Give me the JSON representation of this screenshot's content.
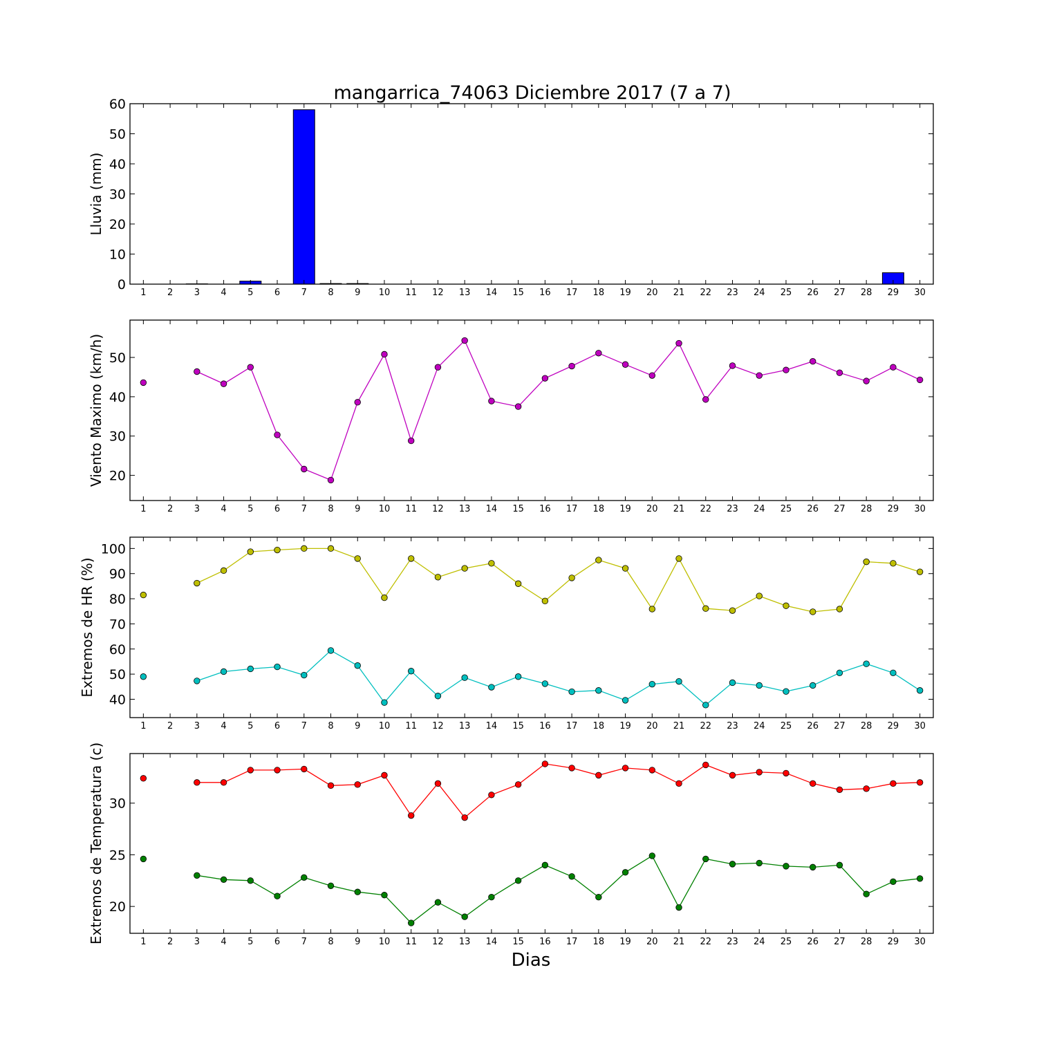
{
  "figure": {
    "title": "mangarrica_74063 Diciembre 2017  (7 a 7)",
    "xlabel": "Dias"
  },
  "chart_data": [
    {
      "type": "bar",
      "ylabel": "Lluvia (mm)",
      "ylim": [
        0,
        60
      ],
      "yticks": [
        0,
        10,
        20,
        30,
        40,
        50,
        60
      ],
      "x": [
        1,
        2,
        3,
        4,
        5,
        6,
        7,
        8,
        9,
        10,
        11,
        12,
        13,
        14,
        15,
        16,
        17,
        18,
        19,
        20,
        21,
        22,
        23,
        24,
        25,
        26,
        27,
        28,
        29,
        30
      ],
      "xlim": [
        0.5,
        30.5
      ],
      "series": [
        {
          "color": "#0000ff",
          "values": [
            0,
            0,
            0.1,
            0,
            1.0,
            0,
            58.0,
            0.2,
            0.2,
            0,
            0,
            0,
            0,
            0,
            0,
            0,
            0,
            0,
            0,
            0,
            0,
            0,
            0,
            0,
            0,
            0,
            0,
            0,
            3.8,
            0
          ]
        }
      ],
      "grid": false
    },
    {
      "type": "line",
      "ylabel": "Viento Maximo (km/h)",
      "ylim": [
        13.6,
        59.5
      ],
      "yticks": [
        20,
        30,
        40,
        50
      ],
      "x": [
        1,
        2,
        3,
        4,
        5,
        6,
        7,
        8,
        9,
        10,
        11,
        12,
        13,
        14,
        15,
        16,
        17,
        18,
        19,
        20,
        21,
        22,
        23,
        24,
        25,
        26,
        27,
        28,
        29,
        30
      ],
      "xlim": [
        0.5,
        30.5
      ],
      "series": [
        {
          "color": "#bf00bf",
          "values": [
            43.6,
            null,
            46.4,
            43.3,
            47.5,
            30.3,
            21.6,
            18.8,
            38.6,
            50.8,
            28.8,
            47.5,
            54.3,
            38.9,
            37.5,
            44.7,
            47.8,
            51.1,
            48.2,
            45.4,
            53.6,
            39.3,
            47.9,
            45.4,
            46.8,
            49.0,
            46.1,
            44.0,
            47.5,
            44.3
          ]
        }
      ],
      "grid": false
    },
    {
      "type": "line",
      "ylabel": "Extremos de HR (%)",
      "ylim": [
        32.7,
        104.5
      ],
      "yticks": [
        40,
        50,
        60,
        70,
        80,
        90,
        100
      ],
      "x": [
        1,
        2,
        3,
        4,
        5,
        6,
        7,
        8,
        9,
        10,
        11,
        12,
        13,
        14,
        15,
        16,
        17,
        18,
        19,
        20,
        21,
        22,
        23,
        24,
        25,
        26,
        27,
        28,
        29,
        30
      ],
      "xlim": [
        0.5,
        30.5
      ],
      "series": [
        {
          "color": "#bfbf00",
          "values": [
            81.5,
            null,
            86.2,
            91.2,
            98.7,
            99.4,
            100,
            100,
            96.0,
            80.4,
            96.0,
            88.6,
            92.1,
            94.1,
            86.0,
            79.1,
            88.3,
            95.4,
            92.1,
            75.9,
            96.0,
            76.1,
            75.3,
            81.1,
            77.2,
            74.8,
            75.9,
            94.7,
            94.1,
            90.7
          ]
        },
        {
          "color": "#00bfbf",
          "values": [
            49.0,
            null,
            47.3,
            51.0,
            52.1,
            52.9,
            49.6,
            59.4,
            53.4,
            38.7,
            51.2,
            41.3,
            48.6,
            44.8,
            49.0,
            46.2,
            43.0,
            43.5,
            39.6,
            46.0,
            47.1,
            37.7,
            46.6,
            45.5,
            43.1,
            45.5,
            50.5,
            54.1,
            50.5,
            43.5
          ]
        }
      ],
      "grid": false
    },
    {
      "type": "line",
      "ylabel": "Extremos de Temperatura (c)",
      "ylim": [
        17.4,
        34.8
      ],
      "yticks": [
        20,
        25,
        30
      ],
      "x": [
        1,
        2,
        3,
        4,
        5,
        6,
        7,
        8,
        9,
        10,
        11,
        12,
        13,
        14,
        15,
        16,
        17,
        18,
        19,
        20,
        21,
        22,
        23,
        24,
        25,
        26,
        27,
        28,
        29,
        30
      ],
      "xlim": [
        0.5,
        30.5
      ],
      "series": [
        {
          "color": "#ff0000",
          "values": [
            32.4,
            null,
            32.0,
            32.0,
            33.2,
            33.2,
            33.3,
            31.7,
            31.8,
            32.7,
            28.8,
            31.9,
            28.6,
            30.8,
            31.8,
            33.8,
            33.4,
            32.7,
            33.4,
            33.2,
            31.9,
            33.7,
            32.7,
            33.0,
            32.9,
            31.9,
            31.3,
            31.4,
            31.9,
            32.0
          ]
        },
        {
          "color": "#008000",
          "values": [
            24.6,
            null,
            23.0,
            22.6,
            22.5,
            21.0,
            22.8,
            22.0,
            21.4,
            21.1,
            18.4,
            20.4,
            19.0,
            20.9,
            22.5,
            24.0,
            22.9,
            20.9,
            23.3,
            24.9,
            19.9,
            24.6,
            24.1,
            24.2,
            23.9,
            23.8,
            24.0,
            21.2,
            22.4,
            22.7
          ]
        }
      ],
      "grid": false
    }
  ]
}
